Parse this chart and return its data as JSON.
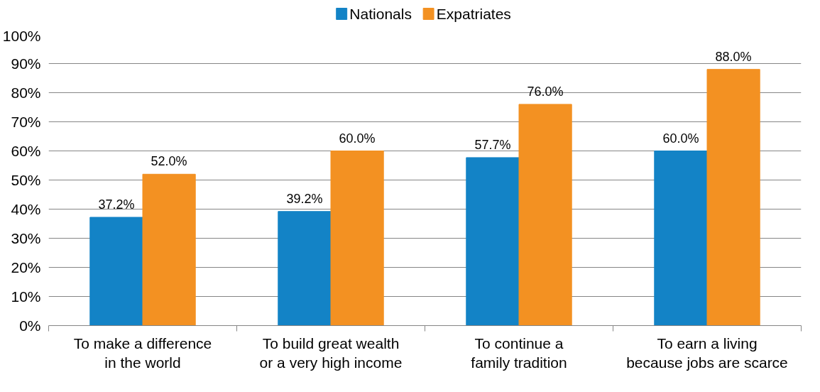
{
  "chart_data": {
    "type": "bar",
    "categories": [
      "To make a difference in the world",
      "To build great wealth or a very high income",
      "To continue a family tradition",
      "To earn a living because jobs are scarce"
    ],
    "series": [
      {
        "name": "Nationals",
        "color": "#1383c6",
        "values": [
          37.2,
          39.2,
          57.7,
          60.0
        ],
        "value_labels": [
          "37.2%",
          "39.2%",
          "57.7%",
          "60.0%"
        ]
      },
      {
        "name": "Expatriates",
        "color": "#f39122",
        "values": [
          52.0,
          60.0,
          76.0,
          88.0
        ],
        "value_labels": [
          "52.0%",
          "60.0%",
          "76.0%",
          "88.0%"
        ]
      }
    ],
    "ylim": [
      0,
      100
    ],
    "yticks": [
      {
        "value": 0,
        "label": "0%"
      },
      {
        "value": 10,
        "label": "10%"
      },
      {
        "value": 20,
        "label": "20%"
      },
      {
        "value": 30,
        "label": "30%"
      },
      {
        "value": 40,
        "label": "40%"
      },
      {
        "value": 50,
        "label": "50%"
      },
      {
        "value": 60,
        "label": "60%"
      },
      {
        "value": 70,
        "label": "70%"
      },
      {
        "value": 80,
        "label": "80%"
      },
      {
        "value": 90,
        "label": "90%"
      },
      {
        "value": 100,
        "label": "100%"
      }
    ],
    "grid": "y",
    "legend": "top"
  }
}
